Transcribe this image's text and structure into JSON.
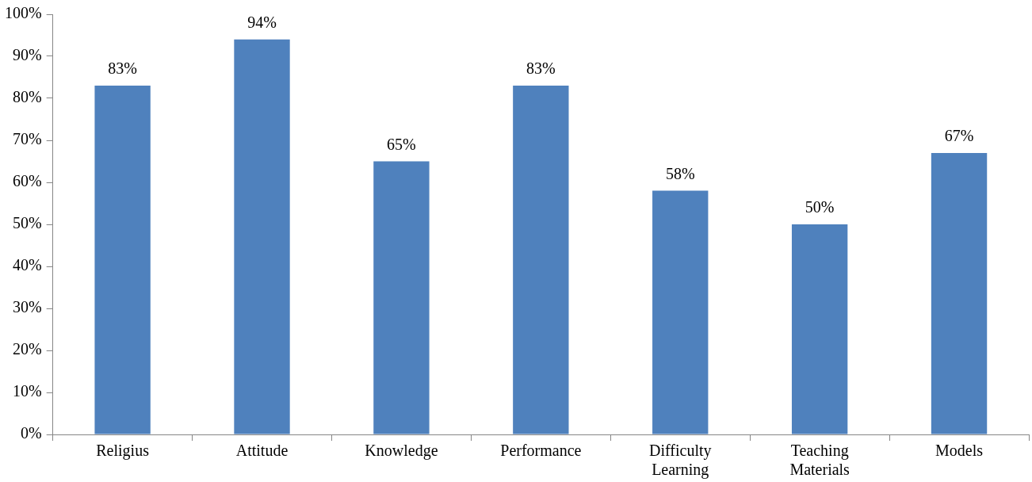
{
  "chart_data": {
    "type": "bar",
    "categories": [
      "Religius",
      "Attitude",
      "Knowledge",
      "Performance",
      "Difficulty Learning",
      "Teaching Materials",
      "Models"
    ],
    "values": [
      83,
      94,
      65,
      83,
      58,
      50,
      67
    ],
    "color": "#4f81bd",
    "value_labels": [
      "83%",
      "94%",
      "65%",
      "83%",
      "58%",
      "50%",
      "67%"
    ],
    "ylim": [
      0,
      100
    ],
    "yticks": [
      {
        "value": 0,
        "label": "0%"
      },
      {
        "value": 10,
        "label": "10%"
      },
      {
        "value": 20,
        "label": "20%"
      },
      {
        "value": 30,
        "label": "30%"
      },
      {
        "value": 40,
        "label": "40%"
      },
      {
        "value": 50,
        "label": "50%"
      },
      {
        "value": 60,
        "label": "60%"
      },
      {
        "value": 70,
        "label": "70%"
      },
      {
        "value": 80,
        "label": "80%"
      },
      {
        "value": 90,
        "label": "90%"
      },
      {
        "value": 100,
        "label": "100%"
      }
    ],
    "grid": false,
    "legend": false
  }
}
